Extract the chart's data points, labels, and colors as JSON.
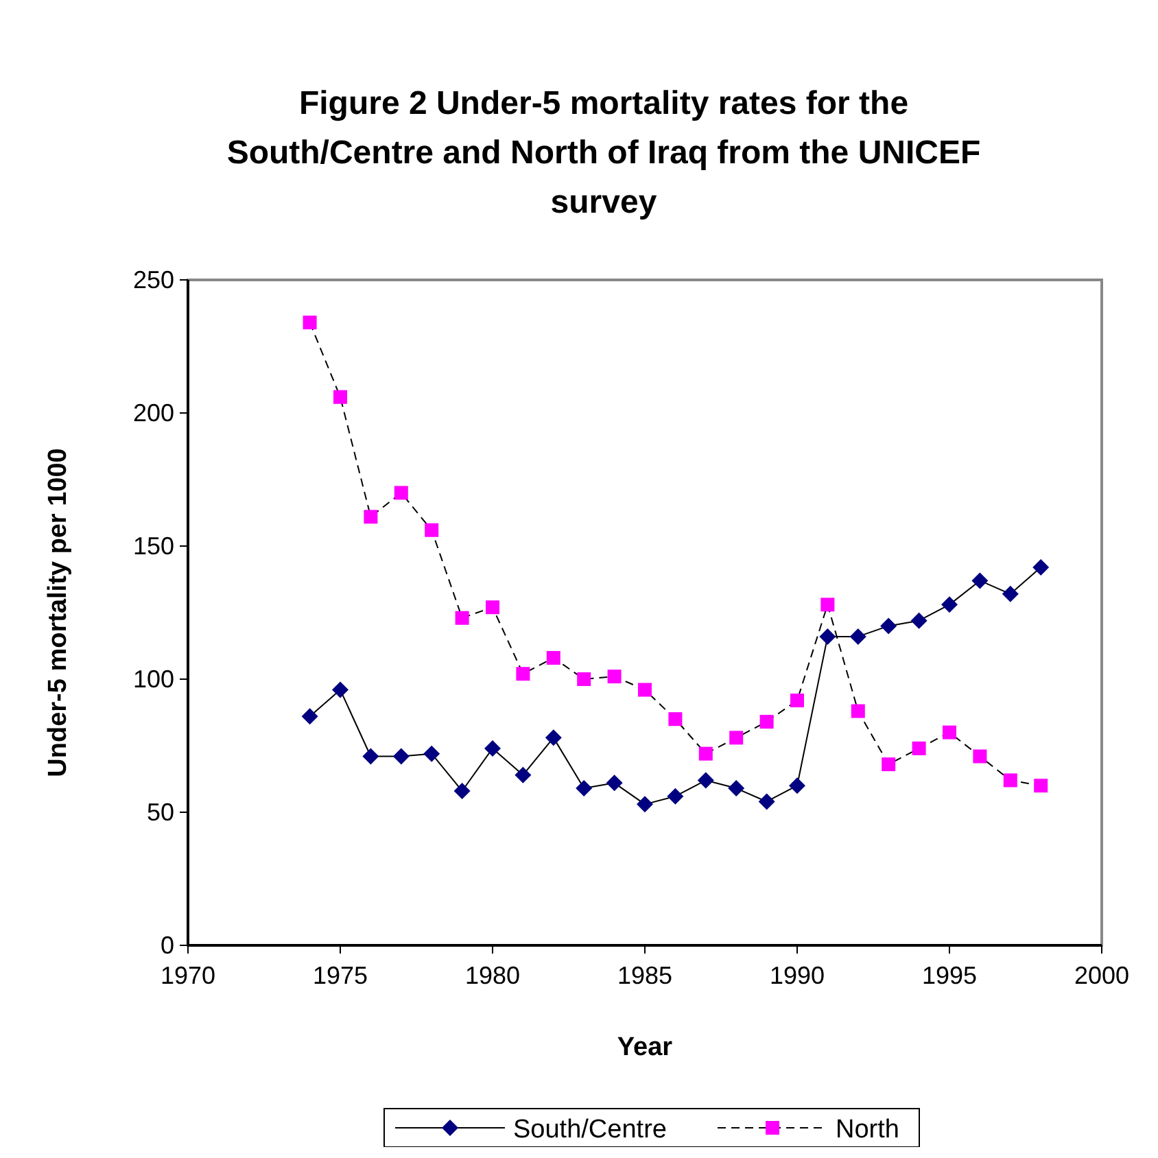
{
  "chart_data": {
    "type": "line",
    "title": "Figure 2 Under-5 mortality rates for the South/Centre and North of Iraq from the UNICEF survey",
    "xlabel": "Year",
    "ylabel": "Under-5 mortality per 1000",
    "x": [
      1974,
      1975,
      1976,
      1977,
      1978,
      1979,
      1980,
      1981,
      1982,
      1983,
      1984,
      1985,
      1986,
      1987,
      1988,
      1989,
      1990,
      1991,
      1992,
      1993,
      1994,
      1995,
      1996,
      1997,
      1998
    ],
    "series": [
      {
        "name": "South/Centre",
        "color": "#000080",
        "marker": "diamond",
        "line_style": "solid",
        "values": [
          86,
          96,
          71,
          71,
          72,
          58,
          74,
          64,
          78,
          59,
          61,
          53,
          56,
          62,
          59,
          54,
          60,
          116,
          116,
          120,
          122,
          128,
          137,
          132,
          142
        ]
      },
      {
        "name": "North",
        "color": "#ff00ff",
        "marker": "square",
        "line_style": "dashed",
        "values": [
          234,
          206,
          161,
          170,
          156,
          123,
          127,
          102,
          108,
          100,
          101,
          96,
          85,
          72,
          78,
          84,
          92,
          128,
          88,
          68,
          74,
          80,
          71,
          62,
          60
        ]
      }
    ],
    "xlim": [
      1970,
      2000
    ],
    "xticks": [
      1970,
      1975,
      1980,
      1985,
      1990,
      1995,
      2000
    ],
    "ylim": [
      0,
      250
    ],
    "yticks": [
      0,
      50,
      100,
      150,
      200,
      250
    ],
    "grid": false,
    "legend": "bottom"
  }
}
